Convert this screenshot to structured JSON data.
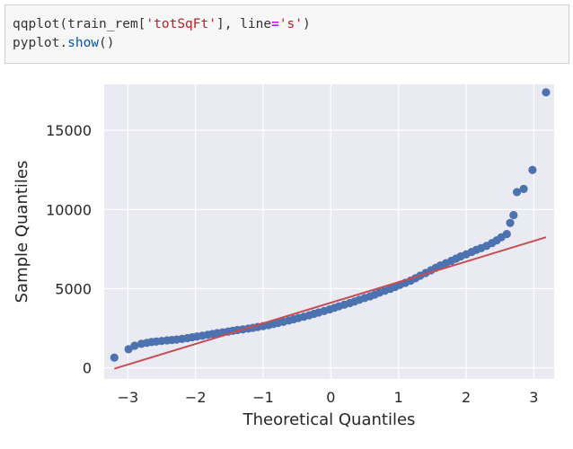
{
  "code_cell": {
    "line1": {
      "prefix": "qqplot(train_rem[",
      "arg_string": "'totSqFt'",
      "middle": "], line",
      "equals": "=",
      "line_string": "'s'",
      "suffix": ")"
    },
    "line2": {
      "prefix": "pyplot.",
      "function": "show",
      "suffix": "()"
    }
  },
  "chart_data": {
    "type": "scatter",
    "title": "",
    "xlabel": "Theoretical Quantiles",
    "ylabel": "Sample Quantiles",
    "xlim": [
      -3.35,
      3.3
    ],
    "ylim": [
      -700,
      17900
    ],
    "xticks": [
      -3,
      -2,
      -1,
      0,
      1,
      2,
      3
    ],
    "xtick_labels": [
      "−3",
      "−2",
      "−1",
      "0",
      "1",
      "2",
      "3"
    ],
    "yticks": [
      0,
      5000,
      10000,
      15000
    ],
    "ytick_labels": [
      "0",
      "5000",
      "10000",
      "15000"
    ],
    "grid": true,
    "background": "#eaeaf2",
    "point_color": "#4c72b0",
    "line_color": "#c44e52",
    "reference_line": {
      "type": "standardized",
      "x": [
        -3.2,
        3.18
      ],
      "y": [
        -50,
        8250
      ]
    },
    "series": [
      {
        "points": [
          [
            -3.2,
            650
          ],
          [
            -2.99,
            1180
          ],
          [
            -2.9,
            1400
          ],
          [
            -2.8,
            1520
          ],
          [
            -2.72,
            1580
          ],
          [
            -2.65,
            1630
          ],
          [
            -2.58,
            1660
          ],
          [
            -2.5,
            1700
          ],
          [
            -2.42,
            1740
          ],
          [
            -2.35,
            1760
          ],
          [
            -2.28,
            1790
          ],
          [
            -2.2,
            1830
          ],
          [
            -2.12,
            1880
          ],
          [
            -2.05,
            1930
          ],
          [
            -1.98,
            1980
          ],
          [
            -1.9,
            2030
          ],
          [
            -1.82,
            2090
          ],
          [
            -1.75,
            2140
          ],
          [
            -1.68,
            2190
          ],
          [
            -1.6,
            2240
          ],
          [
            -1.52,
            2290
          ],
          [
            -1.45,
            2340
          ],
          [
            -1.38,
            2390
          ],
          [
            -1.3,
            2430
          ],
          [
            -1.22,
            2480
          ],
          [
            -1.15,
            2530
          ],
          [
            -1.08,
            2580
          ],
          [
            -1.0,
            2640
          ],
          [
            -0.92,
            2700
          ],
          [
            -0.85,
            2770
          ],
          [
            -0.78,
            2840
          ],
          [
            -0.7,
            2910
          ],
          [
            -0.62,
            2990
          ],
          [
            -0.55,
            3070
          ],
          [
            -0.48,
            3150
          ],
          [
            -0.4,
            3230
          ],
          [
            -0.32,
            3320
          ],
          [
            -0.25,
            3410
          ],
          [
            -0.18,
            3500
          ],
          [
            -0.1,
            3590
          ],
          [
            -0.02,
            3690
          ],
          [
            0.05,
            3790
          ],
          [
            0.12,
            3890
          ],
          [
            0.2,
            3990
          ],
          [
            0.28,
            4090
          ],
          [
            0.35,
            4190
          ],
          [
            0.42,
            4300
          ],
          [
            0.5,
            4410
          ],
          [
            0.58,
            4520
          ],
          [
            0.65,
            4630
          ],
          [
            0.72,
            4750
          ],
          [
            0.8,
            4870
          ],
          [
            0.88,
            4990
          ],
          [
            0.95,
            5110
          ],
          [
            1.02,
            5240
          ],
          [
            1.1,
            5370
          ],
          [
            1.18,
            5510
          ],
          [
            1.25,
            5660
          ],
          [
            1.32,
            5820
          ],
          [
            1.4,
            5990
          ],
          [
            1.48,
            6160
          ],
          [
            1.55,
            6320
          ],
          [
            1.62,
            6470
          ],
          [
            1.7,
            6610
          ],
          [
            1.78,
            6760
          ],
          [
            1.85,
            6900
          ],
          [
            1.92,
            7040
          ],
          [
            2.0,
            7170
          ],
          [
            2.08,
            7320
          ],
          [
            2.15,
            7450
          ],
          [
            2.22,
            7560
          ],
          [
            2.3,
            7700
          ],
          [
            2.38,
            7880
          ],
          [
            2.45,
            8050
          ],
          [
            2.52,
            8250
          ],
          [
            2.6,
            8450
          ],
          [
            2.65,
            9150
          ],
          [
            2.7,
            9650
          ],
          [
            2.75,
            11100
          ],
          [
            2.85,
            11300
          ],
          [
            2.98,
            12500
          ],
          [
            3.18,
            17400
          ]
        ]
      }
    ]
  }
}
